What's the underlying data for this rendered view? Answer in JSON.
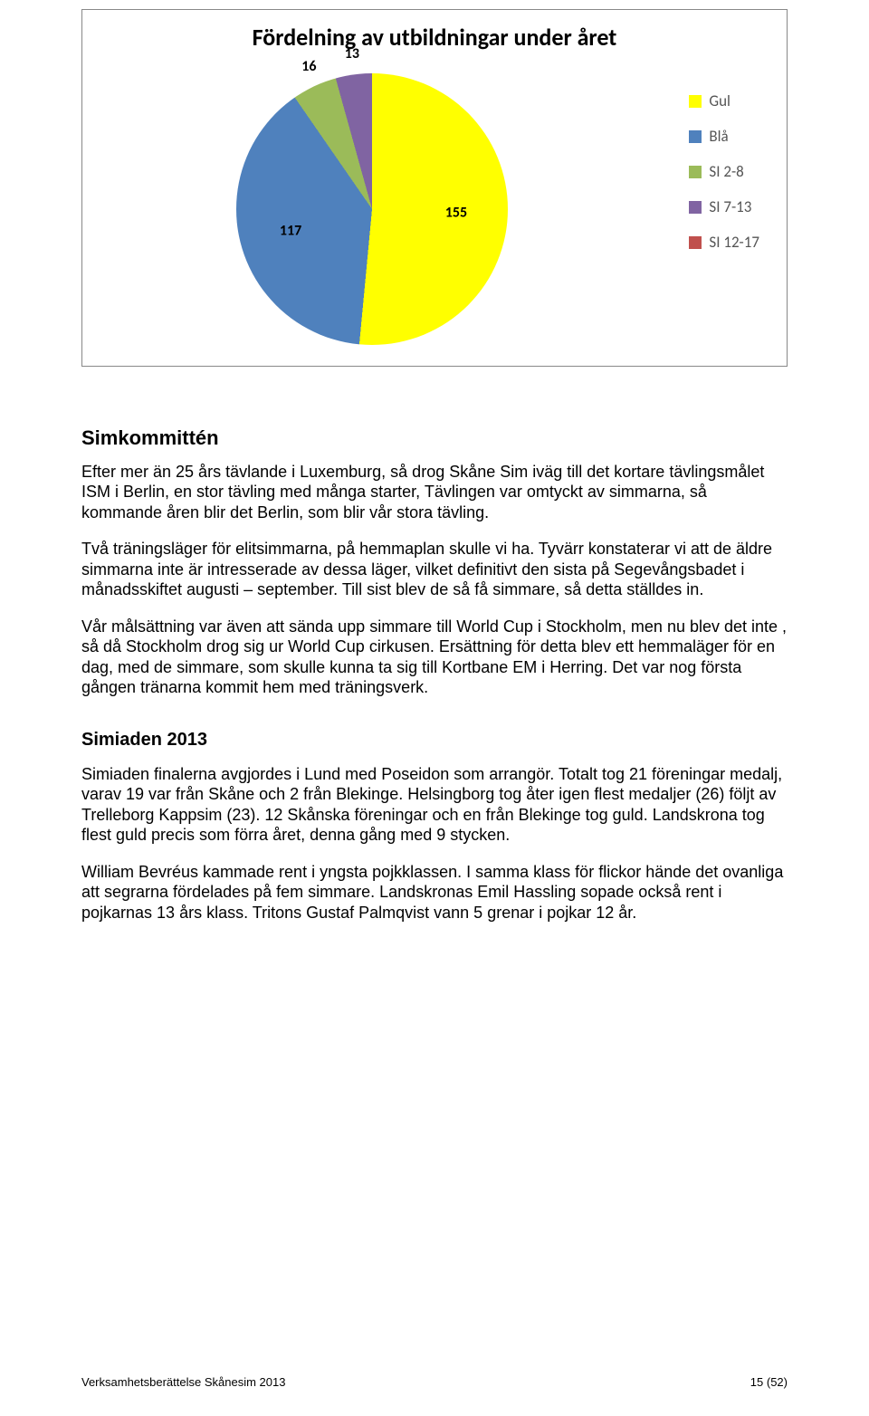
{
  "chart": {
    "type": "pie",
    "title": "Fördelning av utbildningar under året",
    "title_fontsize": 26,
    "background_color": "#ffffff",
    "border_color": "#888888",
    "label_fontsize": 16,
    "label_color": "#000000",
    "slices": [
      {
        "label": "Gul",
        "value": 155,
        "color": "#ffff00"
      },
      {
        "label": "Blå",
        "value": 117,
        "color": "#4f81bd"
      },
      {
        "label": "SI 2-8",
        "value": 16,
        "color": "#9bbb59"
      },
      {
        "label": "SI 7-13",
        "value": 13,
        "color": "#8064a2"
      },
      {
        "label": "SI 12-17",
        "value": 0,
        "color": "#c0504d"
      }
    ],
    "legend": {
      "position": "right",
      "fontsize": 17,
      "text_color": "#555555",
      "swatch_size": 14
    },
    "pie_diameter": 300
  },
  "heading1": "Simkommittén",
  "para1": "Efter mer än 25 års tävlande i Luxemburg, så drog Skåne Sim iväg till det kortare tävlingsmålet ISM i Berlin, en stor tävling med många starter, Tävlingen var omtyckt av simmarna, så kommande åren blir det Berlin, som blir vår stora tävling.",
  "para2": "Två träningsläger för elitsimmarna, på hemmaplan skulle vi ha. Tyvärr konstaterar vi att de äldre simmarna inte är intresserade av dessa läger, vilket definitivt den sista på Segevångsbadet i månadsskiftet augusti – september. Till sist blev de så få simmare, så detta ställdes in.",
  "para3": "Vår målsättning var även att sända upp simmare till World Cup i Stockholm, men nu blev det inte , så då Stockholm drog sig ur World Cup cirkusen. Ersättning för detta blev ett hemmaläger för en dag, med de simmare, som skulle kunna ta sig till Kortbane EM i Herring. Det var nog första gången tränarna kommit hem med träningsverk.",
  "heading2": "Simiaden 2013",
  "para4": "Simiaden finalerna avgjordes i Lund med Poseidon som arrangör. Totalt tog 21 föreningar medalj, varav 19 var från Skåne och 2 från Blekinge. Helsingborg tog åter igen flest medaljer (26) följt av Trelleborg Kappsim (23). 12 Skånska föreningar och en från Blekinge tog guld. Landskrona tog flest guld precis som förra året, denna gång med 9 stycken.",
  "para5": "William Bevréus kammade rent i yngsta pojkklassen. I samma klass för flickor hände det ovanliga att segrarna fördelades på fem simmare. Landskronas Emil Hassling sopade också rent i pojkarnas 13 års klass. Tritons Gustaf Palmqvist vann 5 grenar i pojkar 12 år.",
  "footer_left": "Verksamhetsberättelse Skånesim 2013",
  "footer_right": "15 (52)"
}
